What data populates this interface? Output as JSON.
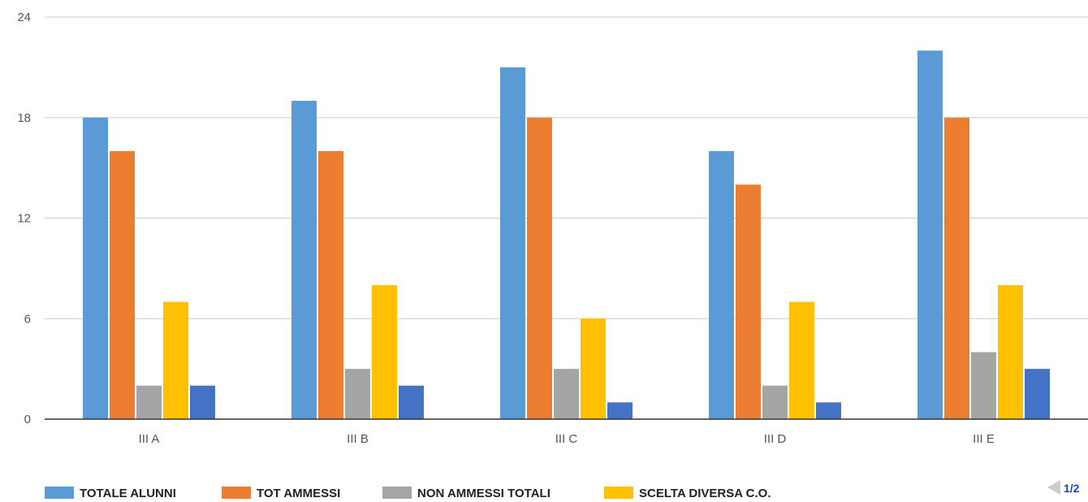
{
  "chart_data": {
    "type": "bar",
    "categories": [
      "III A",
      "III B",
      "III C",
      "III D",
      "III E"
    ],
    "series": [
      {
        "name": "TOTALE ALUNNI",
        "color": "#5b9bd5",
        "values": [
          18,
          19,
          21,
          16,
          22
        ]
      },
      {
        "name": "TOT AMMESSI",
        "color": "#ed7d31",
        "values": [
          16,
          16,
          18,
          14,
          18
        ]
      },
      {
        "name": "NON AMMESSI TOTALI",
        "color": "#a5a5a5",
        "values": [
          2,
          3,
          3,
          2,
          4
        ]
      },
      {
        "name": "SCELTA DIVERSA C.O.",
        "color": "#ffc000",
        "values": [
          7,
          8,
          6,
          7,
          8
        ]
      },
      {
        "color": "#4472c4",
        "values": [
          2,
          2,
          1,
          1,
          3
        ]
      }
    ],
    "yticks": [
      0,
      6,
      12,
      18,
      24
    ],
    "ylim": [
      0,
      24
    ],
    "grid": true,
    "legend_position": "bottom-left"
  },
  "pager": {
    "label": "1/2",
    "prev_icon": "triangle-left-icon"
  }
}
